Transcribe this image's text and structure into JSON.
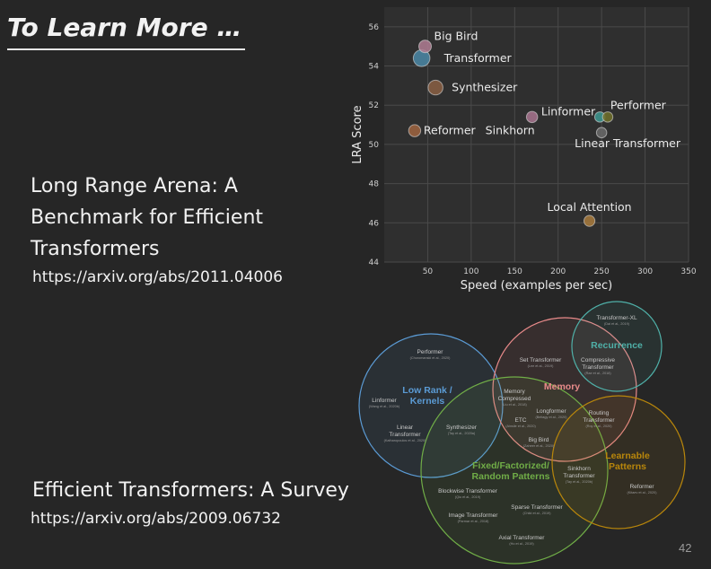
{
  "slide": {
    "title": "To Learn More …",
    "paper1_title": "Long Range Arena: A Benchmark for Efficient Transformers",
    "paper1_url": "https://arxiv.org/abs/2011.04006",
    "paper2_title": "Efficient Transformers: A Survey",
    "paper2_url": "https://arxiv.org/abs/2009.06732",
    "slide_number": "42"
  },
  "chart_data": {
    "type": "scatter",
    "xlabel": "Speed (examples per sec)",
    "ylabel": "LRA Score",
    "xlim": [
      0,
      350
    ],
    "ylim": [
      44,
      57
    ],
    "xticks": [
      50,
      100,
      150,
      200,
      250,
      300,
      350
    ],
    "yticks": [
      44,
      46,
      48,
      50,
      52,
      54,
      56
    ],
    "grid": true,
    "points": [
      {
        "name": "Big Bird",
        "x": 47,
        "y": 55.0,
        "size": 1.0,
        "color": "#b07c93"
      },
      {
        "name": "Transformer",
        "x": 43,
        "y": 54.4,
        "size": 2.0,
        "color": "#4a87a6"
      },
      {
        "name": "Synthesizer",
        "x": 59,
        "y": 52.9,
        "size": 1.5,
        "color": "#8a5f43"
      },
      {
        "name": "Reformer",
        "x": 35,
        "y": 50.7,
        "size": 0.9,
        "color": "#9f6440"
      },
      {
        "name": "Sinkhorn",
        "x": 170,
        "y": 51.4,
        "size": 0.75,
        "color": "#a8748f"
      },
      {
        "name": "Linformer",
        "x": 248,
        "y": 51.4,
        "size": 0.6,
        "color": "#3d9890"
      },
      {
        "name": "Performer",
        "x": 257,
        "y": 51.4,
        "size": 0.6,
        "color": "#70702a"
      },
      {
        "name": "Linear Transformer",
        "x": 250,
        "y": 50.6,
        "size": 0.6,
        "color": "#6a6a6a"
      },
      {
        "name": "Local Attention",
        "x": 236,
        "y": 46.1,
        "size": 0.7,
        "color": "#a87a3c"
      }
    ]
  },
  "venn": {
    "sets": [
      {
        "label": "Low Rank /\nKernels",
        "color": "#5b9bd5"
      },
      {
        "label": "Memory",
        "color": "#e88a8a"
      },
      {
        "label": "Recurrence",
        "color": "#4fb0a8"
      },
      {
        "label": "Fixed/Factorized/\nRandom Patterns",
        "color": "#70ad47"
      },
      {
        "label": "Learnable\nPatterns",
        "color": "#b8860b"
      }
    ],
    "items": [
      {
        "name": "Transformer-XL",
        "cite": "(Dai et al., 2019)"
      },
      {
        "name": "Compressive\nTransformer",
        "cite": "(Rae et al., 2018)"
      },
      {
        "name": "Performer",
        "cite": "(Choromanski et al., 2020)"
      },
      {
        "name": "Set Transformer",
        "cite": "(Lee et al., 2019)"
      },
      {
        "name": "Linformer",
        "cite": "(Wang et al., 2020b)"
      },
      {
        "name": "Memory\nCompressed",
        "cite": "(Liu et al., 2018)"
      },
      {
        "name": "Longformer",
        "cite": "(Beltagy et al., 2020)"
      },
      {
        "name": "ETC",
        "cite": "(Ainslie et al., 2020)"
      },
      {
        "name": "Routing\nTransformer",
        "cite": "(Roy et al., 2020)"
      },
      {
        "name": "Linear\nTransformer",
        "cite": "(Katharopoulos et al., 2020)"
      },
      {
        "name": "Synthesizer",
        "cite": "(Tay et al., 2020a)"
      },
      {
        "name": "Big Bird",
        "cite": "(Zaheer et al., 2020)"
      },
      {
        "name": "Sinkhorn\nTransformer",
        "cite": "(Tay et al., 2020b)"
      },
      {
        "name": "Reformer",
        "cite": "(Kitaev et al., 2020)"
      },
      {
        "name": "Blockwise Transformer",
        "cite": "(Qiu et al., 2019)"
      },
      {
        "name": "Sparse Transformer",
        "cite": "(Child et al., 2019)"
      },
      {
        "name": "Image Transformer",
        "cite": "(Parmar et al., 2018)"
      },
      {
        "name": "Axial Transformer",
        "cite": "(Ho et al., 2019)"
      }
    ]
  }
}
